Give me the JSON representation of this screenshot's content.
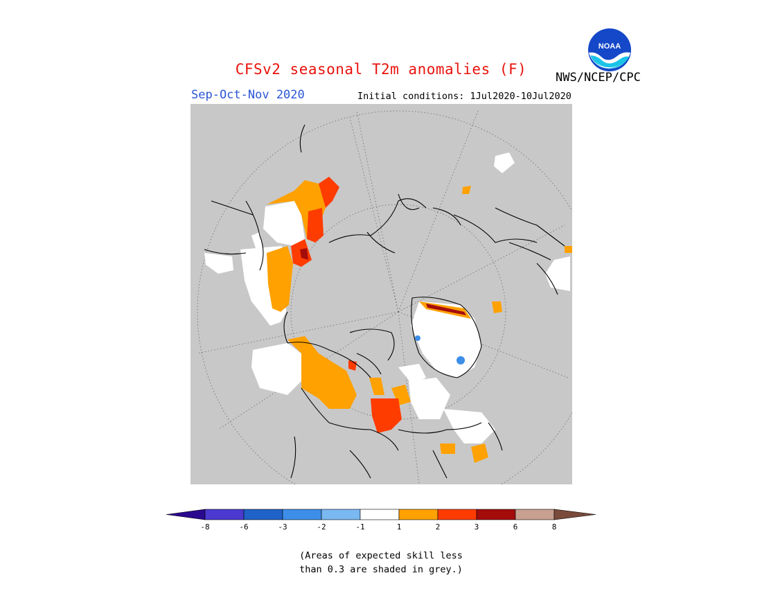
{
  "header": {
    "title": "CFSv2 seasonal T2m anomalies (F)",
    "period": "Sep-Oct-Nov 2020",
    "initial_conditions": "Initial conditions: 1Jul2020-10Jul2020",
    "agency": "NWS/NCEP/CPC",
    "logo_text": "NOAA"
  },
  "map": {
    "projection": "north polar stereographic",
    "background_color": "#c8c8c8",
    "coastline_color": "#000000"
  },
  "legend": {
    "tick_labels": [
      "-8",
      "-6",
      "-3",
      "-2",
      "-1",
      "1",
      "2",
      "3",
      "6",
      "8"
    ],
    "colors": [
      "#2a0a8e",
      "#4a3ad0",
      "#1f62c8",
      "#3d8ee8",
      "#7ab8f2",
      "#ffffff",
      "#ffa100",
      "#ff3c00",
      "#a40c0c",
      "#c8a090",
      "#7a4a3a"
    ]
  },
  "note": {
    "line1": "(Areas of expected skill less",
    "line2": "than 0.3 are shaded in grey.)"
  }
}
